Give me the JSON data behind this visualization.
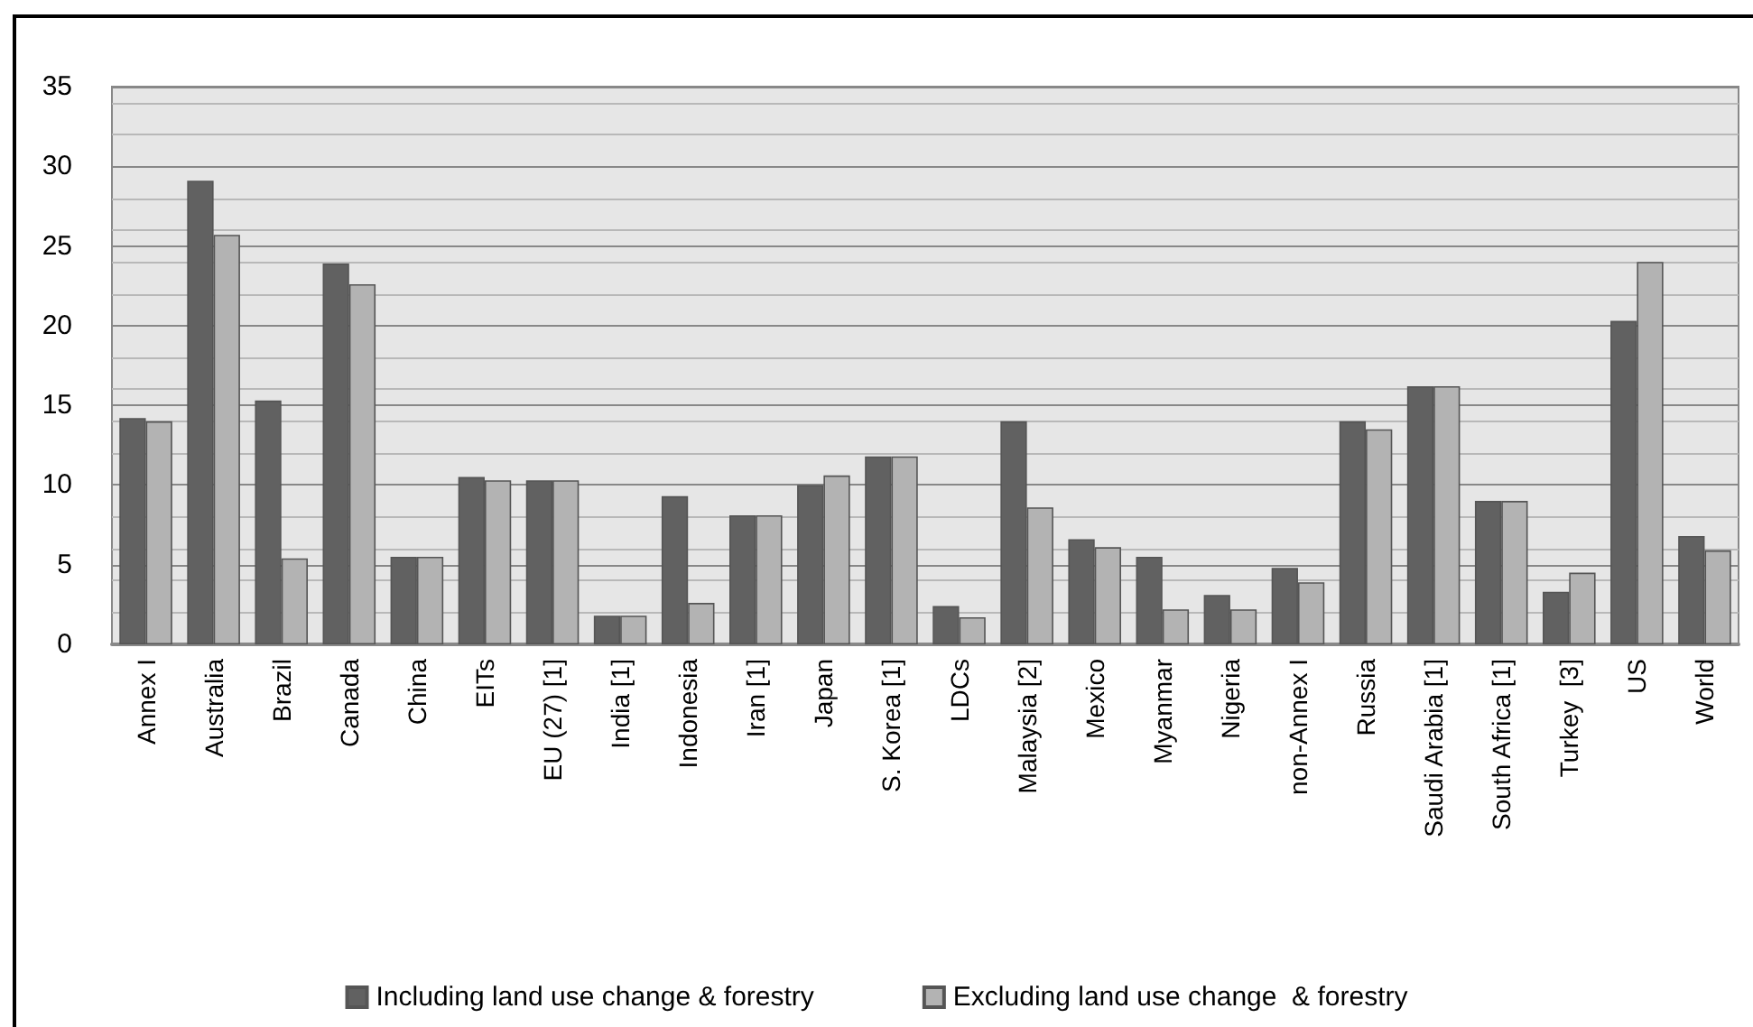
{
  "chart_data": {
    "type": "bar",
    "categories": [
      "Annex I",
      "Australia",
      "Brazil",
      "Canada",
      "China",
      "EITs",
      "EU (27) [1]",
      "India [1]",
      "Indonesia",
      "Iran [1]",
      "Japan",
      "S. Korea [1]",
      "LDCs",
      "Malaysia [2]",
      "Mexico",
      "Myanmar",
      "Nigeria",
      "non-Annex I",
      "Russia",
      "Saudi Arabia [1]",
      "South Africa [1]",
      "Turkey  [3]",
      "US",
      "World"
    ],
    "series": [
      {
        "name": "Including land use change & forestry",
        "color": "#616161",
        "values": [
          14.2,
          29.1,
          15.3,
          23.9,
          5.5,
          10.5,
          10.3,
          1.8,
          9.3,
          8.1,
          10.0,
          11.8,
          2.4,
          14.0,
          6.6,
          5.5,
          3.1,
          4.8,
          14.0,
          16.2,
          9.0,
          3.3,
          20.3,
          6.8
        ]
      },
      {
        "name": "Excluding land use change  & forestry",
        "color": "#b3b3b3",
        "values": [
          14.0,
          25.7,
          5.4,
          22.6,
          5.5,
          10.3,
          10.3,
          1.8,
          2.6,
          8.1,
          10.6,
          11.8,
          1.7,
          8.6,
          6.1,
          2.2,
          2.2,
          3.9,
          13.5,
          16.2,
          9.0,
          4.5,
          24.0,
          5.9
        ]
      }
    ],
    "ylim": [
      0,
      35
    ],
    "yticks": [
      0,
      5,
      10,
      15,
      20,
      25,
      30,
      35
    ],
    "grid": true,
    "legend": "bottom"
  }
}
